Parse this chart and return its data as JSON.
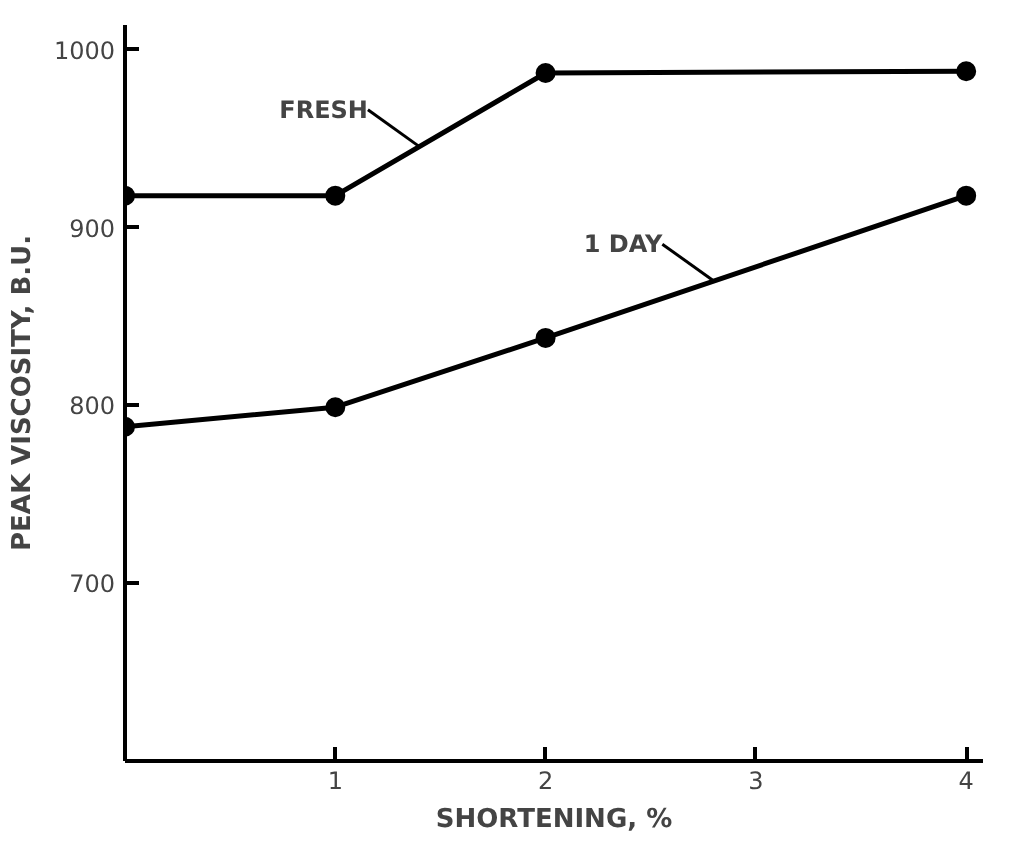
{
  "chart_data": {
    "type": "line",
    "xlabel": "SHORTENING, %",
    "ylabel": "PEAK VISCOSITY, B.U.",
    "x": [
      0,
      1,
      2,
      4
    ],
    "series": [
      {
        "name": "FRESH",
        "color": "#000000",
        "values": [
          918,
          918,
          987,
          988
        ]
      },
      {
        "name": "1 DAY",
        "color": "#000000",
        "values": [
          788,
          799,
          838,
          918
        ]
      }
    ],
    "xlim": [
      0,
      4.08
    ],
    "ylim": [
      600,
      1014
    ],
    "xticks": [
      1,
      2,
      3,
      4
    ],
    "yticks": [
      700,
      800,
      900,
      1000
    ],
    "marker": "circle",
    "line_style": "solid",
    "grid": false
  }
}
